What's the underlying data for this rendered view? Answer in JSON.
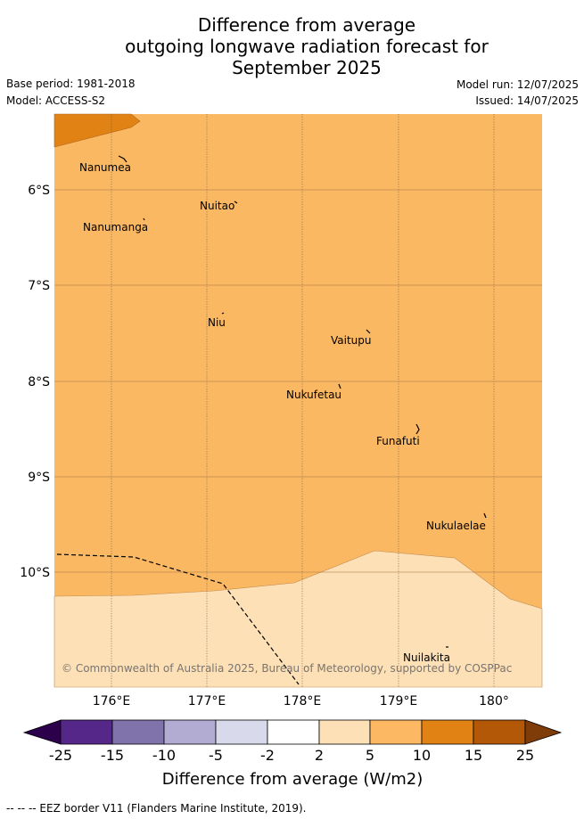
{
  "title": {
    "line1": "Difference from average",
    "line2": "outgoing longwave radiation forecast for",
    "line3": "September 2025"
  },
  "meta": {
    "base_period": "Base period: 1981-2018",
    "model": "Model: ACCESS-S2",
    "model_run": "Model run: 12/07/2025",
    "issued": "Issued: 14/07/2025"
  },
  "map": {
    "lon_ticks": [
      "176°E",
      "177°E",
      "178°E",
      "179°E",
      "180°"
    ],
    "lat_ticks": [
      "6°S",
      "7°S",
      "8°S",
      "9°S",
      "10°S"
    ],
    "islands": [
      "Nanumea",
      "Nuitao",
      "Nanumanga",
      "Niu",
      "Vaitupu",
      "Nukufetau",
      "Funafuti",
      "Nukulaelae",
      "Nuilakita"
    ],
    "credit": "© Commonwealth of Australia 2025, Bureau of Meteorology, supported by COSPPac",
    "fill_colors": {
      "5_10": "#fbb862",
      "2_5": "#fde0b5",
      "10_15": "#e08214"
    }
  },
  "colorbar": {
    "labels": [
      "-25",
      "-15",
      "-10",
      "-5",
      "-2",
      "2",
      "5",
      "10",
      "15",
      "25"
    ],
    "colors": [
      "#2d004b",
      "#542788",
      "#8073ac",
      "#b2abd2",
      "#d8daeb",
      "#ffffff",
      "#fee0b6",
      "#fdb863",
      "#e08214",
      "#b35806",
      "#7f3b08"
    ],
    "title": "Difference from average (W/m2)"
  },
  "footer": "-- -- -- EEZ border V11 (Flanders Marine Institute, 2019)."
}
